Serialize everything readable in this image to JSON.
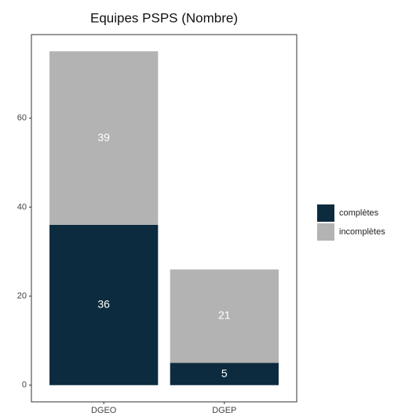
{
  "chart_data": {
    "type": "stacked_bar",
    "title": "Equipes PSPS (Nombre)",
    "categories": [
      "DGEO",
      "DGEP"
    ],
    "series": [
      {
        "name": "complètes",
        "color": "#0d2b3e",
        "values": [
          36,
          5
        ]
      },
      {
        "name": "incomplètes",
        "color": "#b3b3b3",
        "values": [
          39,
          21
        ]
      }
    ],
    "ylim": [
      -3.75,
      78.75
    ],
    "yticks": [
      0,
      20,
      40,
      60
    ],
    "legend": "right"
  }
}
